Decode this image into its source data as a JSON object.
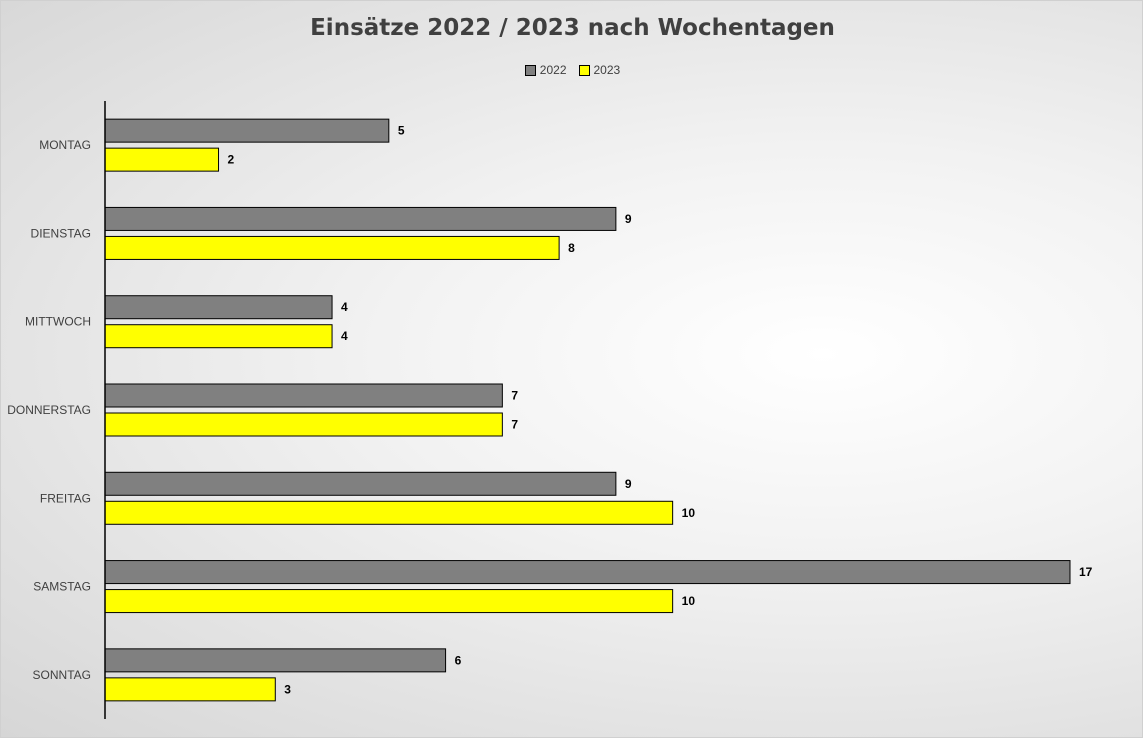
{
  "chart_data": {
    "type": "bar",
    "orientation": "horizontal",
    "title": "Einsätze 2022 / 2023 nach Wochentagen",
    "categories": [
      "MONTAG",
      "DIENSTAG",
      "MITTWOCH",
      "DONNERSTAG",
      "FREITAG",
      "SAMSTAG",
      "SONNTAG"
    ],
    "series": [
      {
        "name": "2022",
        "values": [
          5,
          9,
          4,
          7,
          9,
          17,
          6
        ],
        "color": "#808080"
      },
      {
        "name": "2023",
        "values": [
          2,
          8,
          4,
          7,
          10,
          10,
          3
        ],
        "color": "#ffff00"
      }
    ],
    "xlim": [
      0,
      17
    ],
    "grid": false,
    "legend_position": "top-center",
    "data_labels": true
  }
}
